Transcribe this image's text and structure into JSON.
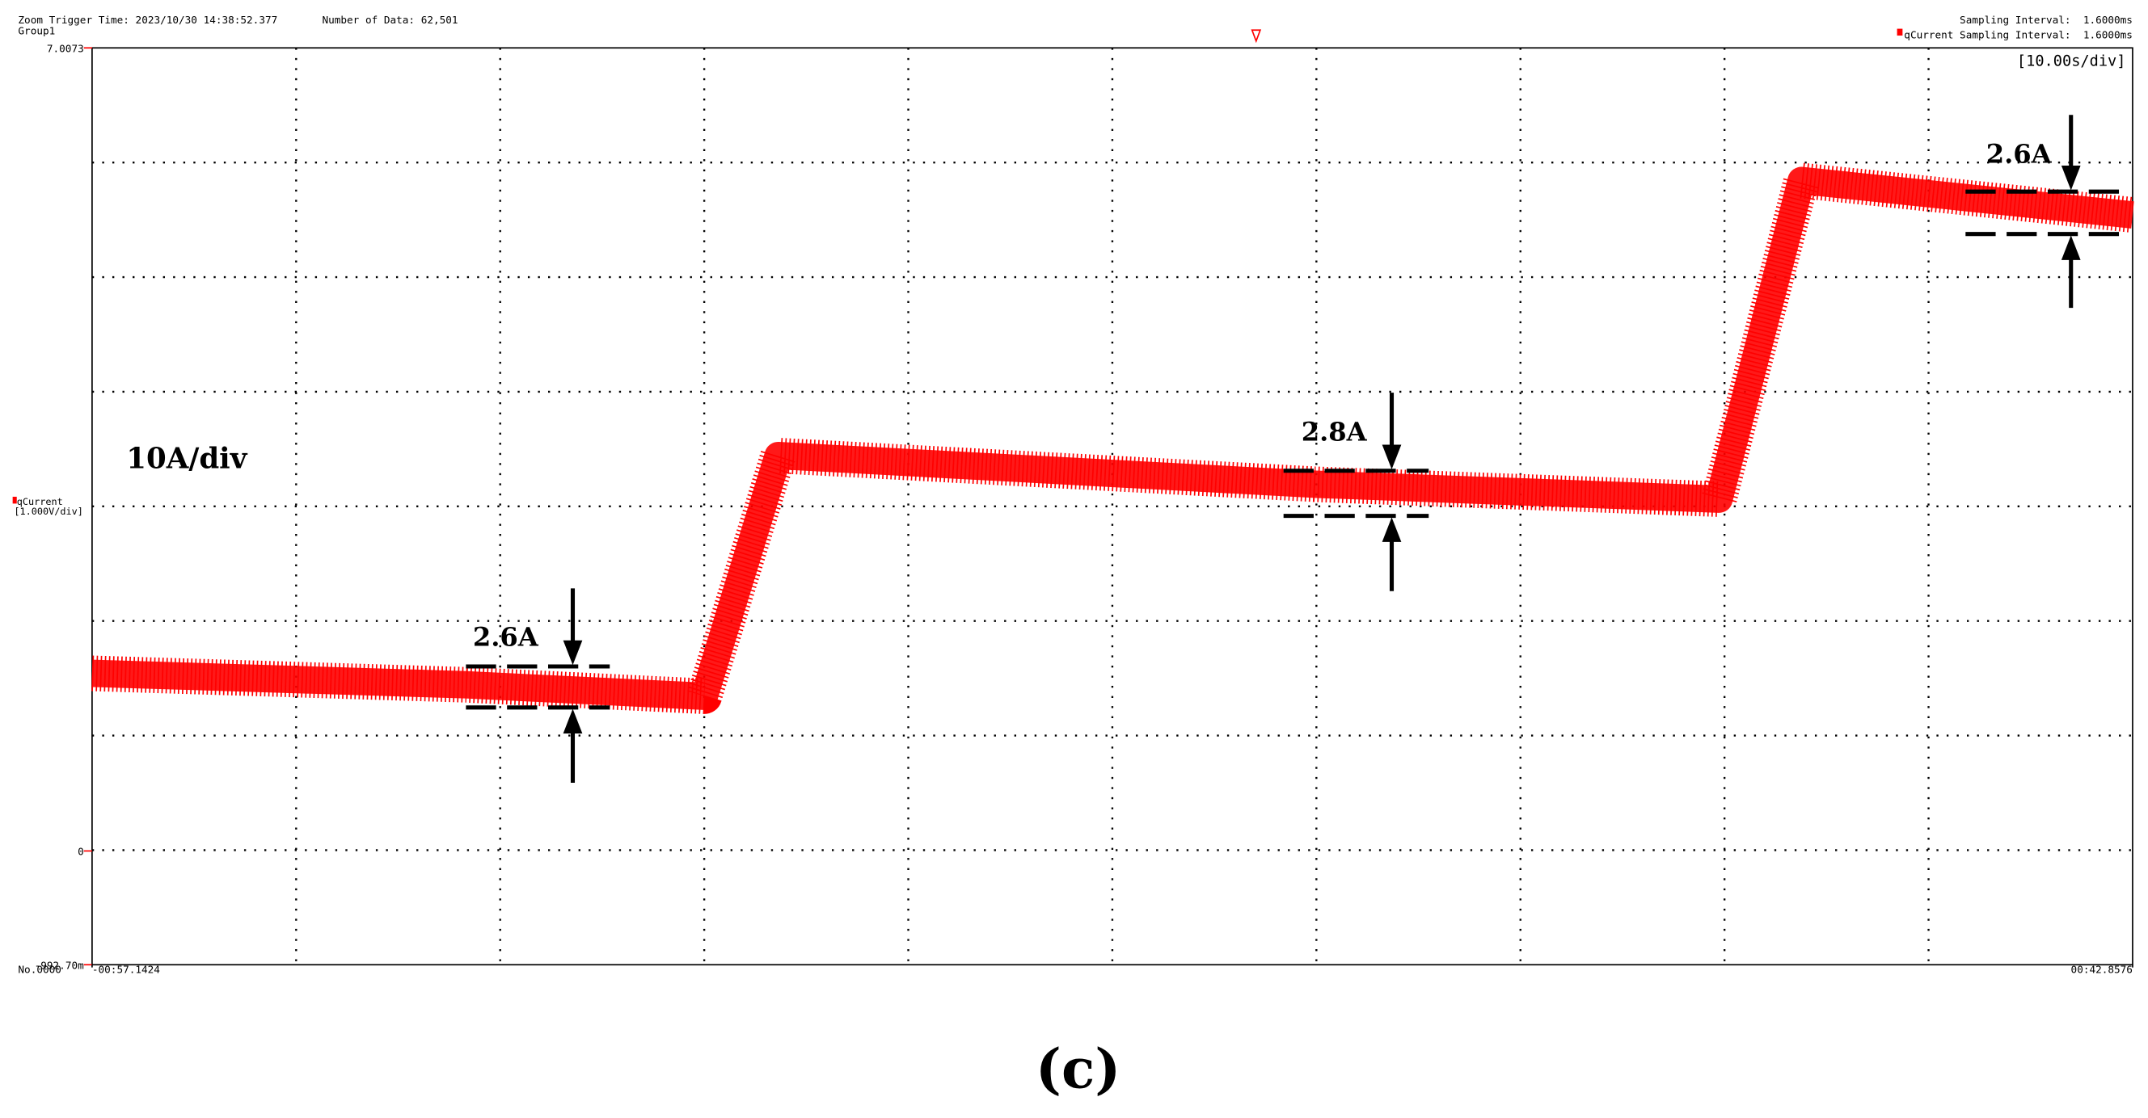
{
  "chart_data": {
    "type": "line",
    "header": {
      "trigger": "Zoom Trigger Time: 2023/10/30 14:38:52.377",
      "count": "Number of Data: 62,501",
      "group": "Group1",
      "sampling": "Sampling Interval:  1.6000ms",
      "channel_sampling": "qCurrent Sampling Interval:  1.6000ms",
      "time_scale": "[10.00s/div]",
      "volt_scale": "[1.000V/div]",
      "number": "No.0000"
    },
    "x": [
      -57.1424,
      -38.82,
      -27.14,
      -23.52,
      2.79,
      22.59,
      26.62,
      42.8576
    ],
    "series": [
      {
        "name": "qCurrent",
        "color": "#ff0000",
        "values": [
          1.55,
          1.45,
          1.35,
          3.45,
          3.2,
          3.07,
          5.85,
          5.55
        ]
      }
    ],
    "xlim": [
      -57.1424,
      42.8576
    ],
    "ylim": [
      -0.9927,
      7.0073
    ],
    "xticks": [
      {
        "value": -57.1424,
        "label": "-00:57.1424"
      },
      {
        "value": 42.8576,
        "label": "00:42.8576"
      }
    ],
    "yticks": [
      7.0073,
      0,
      {
        "value": -0.9927,
        "label": "-992.70m"
      }
    ],
    "grid": true,
    "divisions": [
      10,
      8
    ],
    "annotations": [
      "10A/div",
      "2.6A",
      "2.8A",
      "2.6A"
    ],
    "caption": "(c)"
  }
}
